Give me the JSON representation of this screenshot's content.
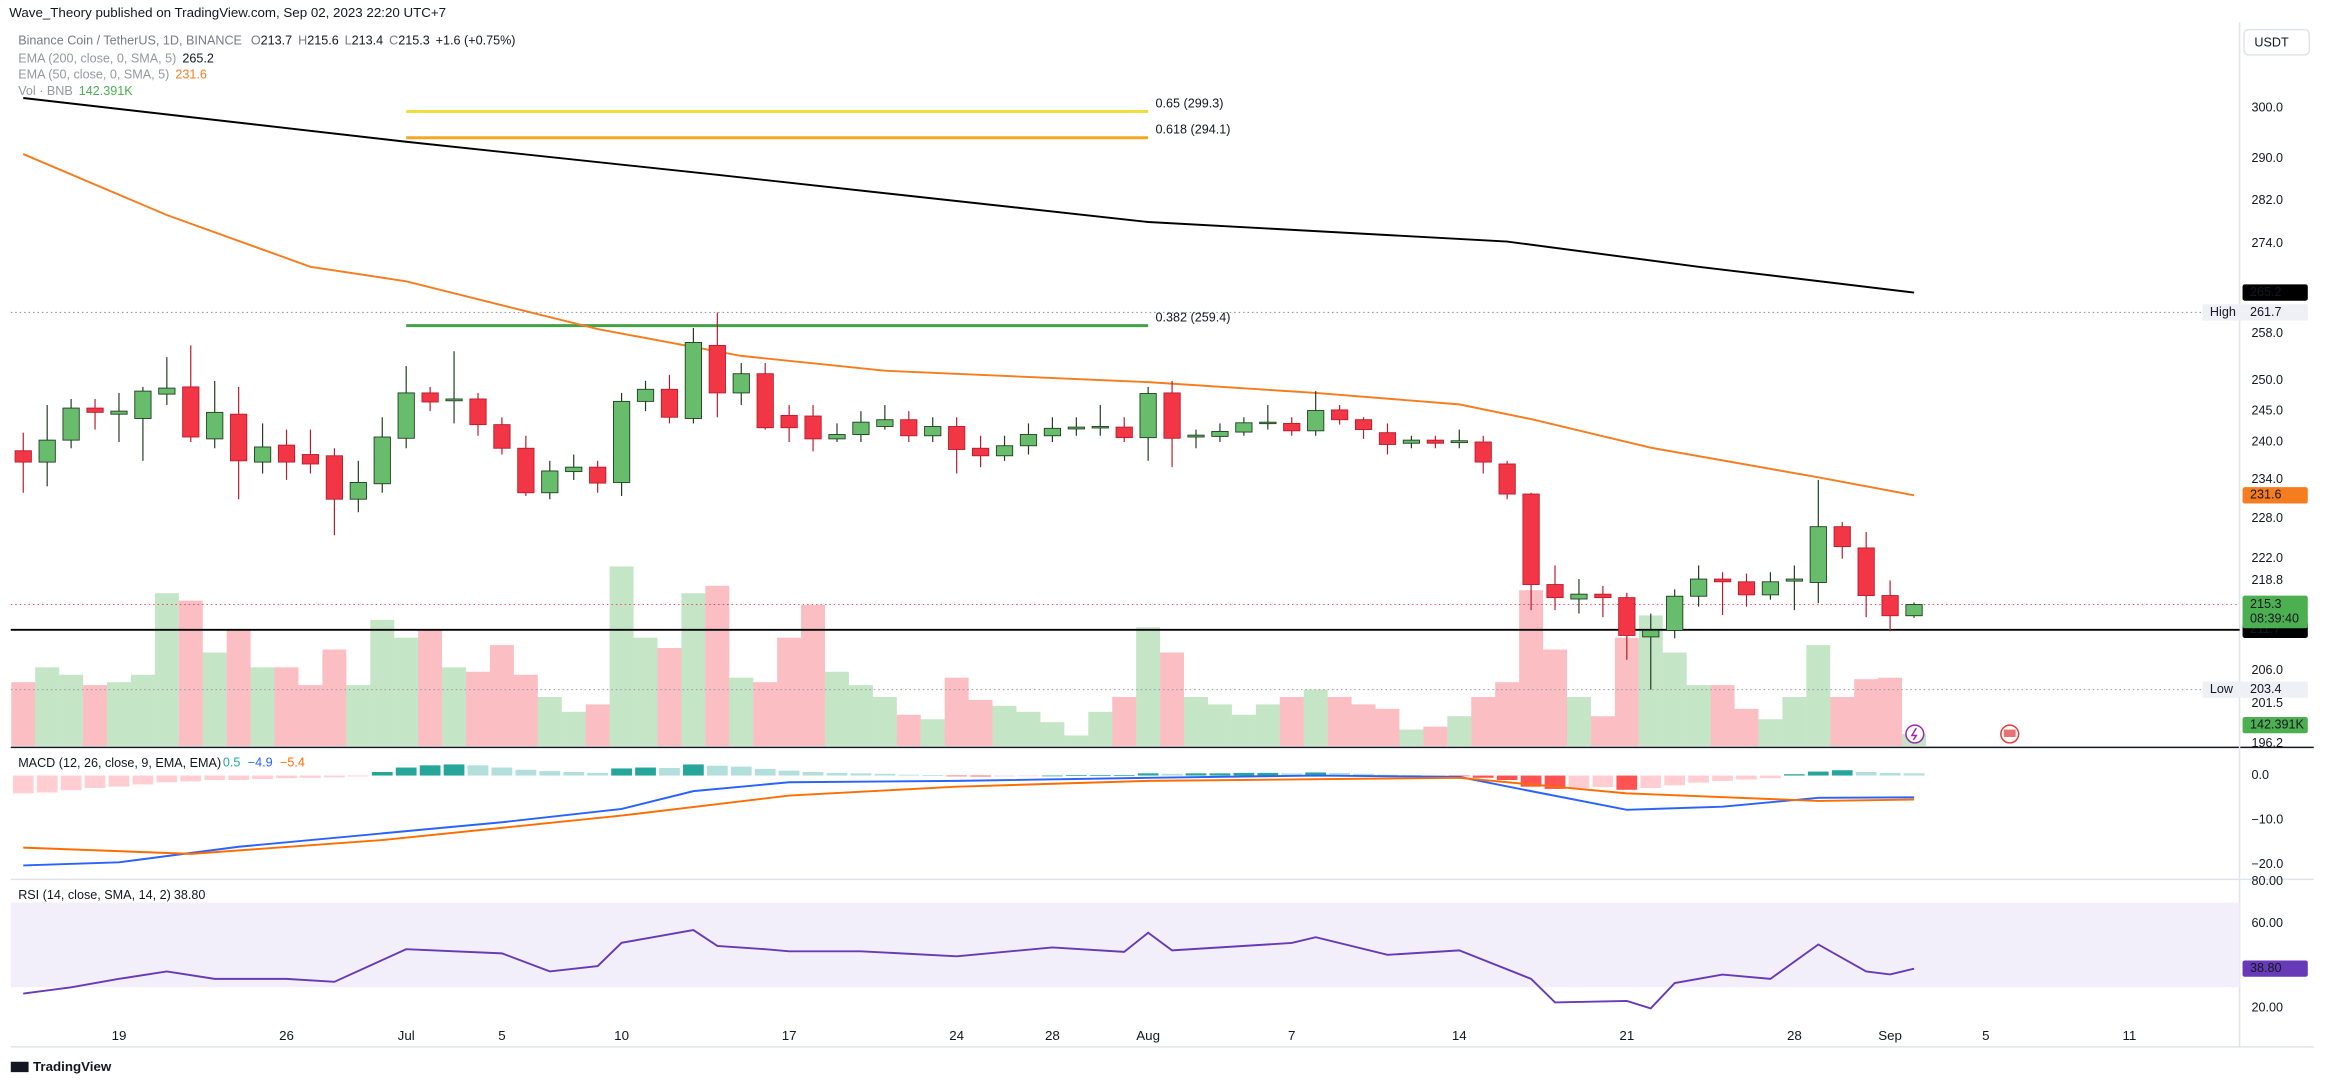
{
  "header": {
    "published": "Wave_Theory published on TradingView.com, Sep 02, 2023 22:20 UTC+7",
    "logo": "TradingView",
    "currency": "USDT"
  },
  "chart_data": {
    "type": "candlestick",
    "title": "Binance Coin / TetherUS, 1D, BINANCE",
    "ohlc_prefixes": [
      "O",
      "H",
      "L",
      "C"
    ],
    "change": "+1.6 (+0.75%)",
    "up_color": "#67bd6b",
    "down_color": "#f23645",
    "log_scale": true,
    "grid": false,
    "x": [
      "Jun 15",
      "Jun 16",
      "Jun 17",
      "Jun 18",
      "Jun 19",
      "Jun 20",
      "Jun 21",
      "Jun 22",
      "Jun 23",
      "Jun 24",
      "Jun 25",
      "Jun 26",
      "Jun 27",
      "Jun 28",
      "Jun 29",
      "Jun 30",
      "Jul 1",
      "Jul 2",
      "Jul 3",
      "Jul 4",
      "Jul 5",
      "Jul 6",
      "Jul 7",
      "Jul 8",
      "Jul 9",
      "Jul 10",
      "Jul 11",
      "Jul 12",
      "Jul 13",
      "Jul 14",
      "Jul 15",
      "Jul 16",
      "Jul 17",
      "Jul 18",
      "Jul 19",
      "Jul 20",
      "Jul 21",
      "Jul 22",
      "Jul 23",
      "Jul 24",
      "Jul 25",
      "Jul 26",
      "Jul 27",
      "Jul 28",
      "Jul 29",
      "Jul 30",
      "Jul 31",
      "Aug 1",
      "Aug 2",
      "Aug 3",
      "Aug 4",
      "Aug 5",
      "Aug 6",
      "Aug 7",
      "Aug 8",
      "Aug 9",
      "Aug 10",
      "Aug 11",
      "Aug 12",
      "Aug 13",
      "Aug 14",
      "Aug 15",
      "Aug 16",
      "Aug 17",
      "Aug 18",
      "Aug 19",
      "Aug 20",
      "Aug 21",
      "Aug 22",
      "Aug 23",
      "Aug 24",
      "Aug 25",
      "Aug 26",
      "Aug 27",
      "Aug 28",
      "Aug 29",
      "Aug 30",
      "Aug 31",
      "Sep 1",
      "Sep 2"
    ],
    "open": [
      238.6,
      236.8,
      240.3,
      245.5,
      244.5,
      243.8,
      247.8,
      249,
      240.5,
      244.5,
      236.8,
      239.5,
      238,
      237.8,
      231,
      233.4,
      240.6,
      248,
      246.7,
      247,
      242.8,
      239,
      232,
      235.3,
      236,
      233.6,
      246.6,
      248.6,
      243.8,
      256,
      248,
      251.2,
      244.3,
      244.2,
      240.5,
      241.2,
      242.5,
      243.6,
      241,
      242.5,
      239,
      237.8,
      239.4,
      241,
      242.1,
      242.3,
      242.4,
      240.7,
      248,
      240.8,
      240.9,
      241.6,
      243,
      243,
      241.8,
      245.2,
      243.6,
      241.5,
      239.8,
      240.3,
      239.9,
      240,
      236.5,
      231.8,
      218.2,
      216.1,
      216.8,
      216.3,
      210.7,
      211.6,
      216.5,
      219,
      218.6,
      216.7,
      218.7,
      218.5,
      226.8,
      223.6,
      216.6,
      213.7
    ],
    "high": [
      241.5,
      246,
      247,
      247,
      248,
      249,
      254,
      256,
      250,
      249,
      243,
      242,
      242,
      239,
      237,
      244,
      252.5,
      249,
      255,
      248,
      244,
      241,
      237,
      238,
      237,
      248,
      250,
      251,
      259,
      261.7,
      253,
      253,
      246,
      246,
      243,
      245,
      246,
      245,
      244,
      244,
      241,
      241,
      243,
      244,
      244,
      246,
      244,
      249,
      250,
      242,
      243,
      244,
      246,
      244,
      248.3,
      246,
      244,
      243,
      241,
      241,
      242,
      241,
      237,
      232,
      221,
      219,
      218,
      217,
      214,
      217.5,
      221,
      220,
      219.8,
      220,
      221,
      234,
      227.5,
      226,
      218.8,
      215.6
    ],
    "low": [
      232,
      233,
      239,
      242,
      240,
      237,
      246,
      240,
      239,
      231,
      235,
      234,
      235,
      225.5,
      229,
      232,
      239,
      245,
      243,
      241,
      238,
      231.5,
      231,
      234,
      232,
      231.5,
      245,
      243,
      243,
      244,
      246,
      242,
      240,
      238.5,
      240,
      240,
      242,
      240,
      240,
      235,
      236,
      237,
      238,
      240,
      241,
      241,
      240,
      237,
      236,
      239,
      240,
      241,
      242,
      241,
      241,
      242.8,
      240.5,
      238,
      239,
      239,
      239,
      235,
      231,
      214.5,
      214.5,
      214,
      213.5,
      207.5,
      203.4,
      210.5,
      215,
      213.8,
      215,
      216,
      214.5,
      215.5,
      222,
      213.5,
      211.5,
      213.4
    ],
    "close": [
      236.8,
      240.3,
      245.5,
      244.8,
      245,
      248.3,
      248.8,
      240.8,
      244.8,
      237,
      239.2,
      236.8,
      236.5,
      231,
      233.6,
      240.8,
      248,
      246.5,
      247,
      242.8,
      239,
      232,
      235.4,
      236,
      233.5,
      246.6,
      248.6,
      244,
      256.5,
      248,
      251.2,
      242.3,
      242.3,
      240.5,
      241.2,
      243.2,
      243.6,
      241,
      242.5,
      238.8,
      237.8,
      239.4,
      241.2,
      242.2,
      242.4,
      242.5,
      240.7,
      247.9,
      240.6,
      241.1,
      241.7,
      243.1,
      243.2,
      241.8,
      245.1,
      243.6,
      242,
      239.6,
      240.3,
      239.8,
      240.2,
      236.8,
      231.8,
      218.2,
      216.3,
      216.8,
      216.3,
      210.9,
      211.6,
      216.5,
      219,
      218.6,
      216.7,
      218.6,
      219,
      226.8,
      223.8,
      216.6,
      213.7,
      215.3
    ],
    "ylim": [
      195.9,
      319.9
    ],
    "yticks": [
      {
        "value": 300,
        "label": "300.0"
      },
      {
        "value": 290,
        "label": "290.0"
      },
      {
        "value": 282,
        "label": "282.0"
      },
      {
        "value": 274,
        "label": "274.0"
      },
      {
        "value": 258,
        "label": "258.0"
      },
      {
        "value": 250,
        "label": "250.0"
      },
      {
        "value": 245,
        "label": "245.0"
      },
      {
        "value": 240,
        "label": "240.0"
      },
      {
        "value": 234,
        "label": "234.0"
      },
      {
        "value": 228,
        "label": "228.0"
      },
      {
        "value": 222,
        "label": "222.0"
      },
      {
        "value": 218.8,
        "label": "218.8"
      },
      {
        "value": 206,
        "label": "206.0"
      },
      {
        "value": 201.5,
        "label": "201.5"
      },
      {
        "value": 196.2,
        "label": "196.2"
      }
    ],
    "xticks": [
      {
        "value": "Jun 19",
        "label": "19"
      },
      {
        "value": "Jun 26",
        "label": "26"
      },
      {
        "value": "Jul 1",
        "label": "Jul"
      },
      {
        "value": "Jul 5",
        "label": "5"
      },
      {
        "value": "Jul 10",
        "label": "10"
      },
      {
        "value": "Jul 17",
        "label": "17"
      },
      {
        "value": "Jul 24",
        "label": "24"
      },
      {
        "value": "Jul 28",
        "label": "28"
      },
      {
        "value": "Aug 1",
        "label": "Aug"
      },
      {
        "value": "Aug 7",
        "label": "7"
      },
      {
        "value": "Aug 14",
        "label": "14"
      },
      {
        "value": "Aug 21",
        "label": "21"
      },
      {
        "value": "Aug 28",
        "label": "28"
      },
      {
        "value": "Sep 1",
        "label": "Sep"
      },
      {
        "value": "Sep 5",
        "label": "5"
      },
      {
        "value": "Sep 11",
        "label": "11"
      }
    ],
    "ema": [
      {
        "name": "EMA (200, close, 0, SMA, 5)",
        "color": "#000000",
        "value_color": "#131722",
        "x": [
          "Jun 15",
          "Jul 1",
          "Jul 14",
          "Aug 1",
          "Aug 16",
          "Aug 24",
          "Sep 2"
        ],
        "values": [
          302.0,
          293.3,
          286.9,
          278.0,
          274.4,
          269.8,
          265.2
        ]
      },
      {
        "name": "EMA (50, close, 0, SMA, 5)",
        "color": "#f57c1f",
        "value_color": "#f57c1f",
        "x": [
          "Jun 15",
          "Jun 21",
          "Jun 27",
          "Jul 1",
          "Jul 9",
          "Jul 15",
          "Jul 21",
          "Aug 1",
          "Aug 8",
          "Aug 14",
          "Aug 17",
          "Aug 22",
          "Aug 29",
          "Sep 2"
        ],
        "values": [
          290.9,
          279.3,
          269.8,
          267.2,
          258.8,
          254.2,
          251.7,
          249.8,
          248.0,
          246.1,
          243.7,
          239.1,
          234.4,
          231.6
        ]
      }
    ],
    "volume": {
      "name": "Vol · BNB",
      "up_color": "rgba(76,175,80,0.32)",
      "down_color": "rgba(242,54,69,0.32)",
      "tag_color": "#4caf50",
      "values": [
        765,
        943,
        854,
        730,
        765,
        854,
        1833,
        1744,
        1121,
        1388,
        943,
        943,
        730,
        1157,
        730,
        1513,
        1299,
        1388,
        943,
        890,
        1210,
        854,
        587,
        409,
        498,
        2154,
        1299,
        1175,
        1833,
        1922,
        819,
        765,
        1299,
        1691,
        890,
        730,
        587,
        374,
        320,
        819,
        552,
        481,
        409,
        285,
        125,
        409,
        587,
        1424,
        1121,
        587,
        498,
        374,
        498,
        587,
        676,
        587,
        498,
        445,
        196,
        231,
        356,
        587,
        765,
        1869,
        1157,
        587,
        356,
        1299,
        1566,
        1121,
        730,
        730,
        445,
        320,
        587,
        1210,
        587,
        801,
        819,
        142.391
      ],
      "value_label": "142.391K"
    },
    "fib_x": [
      "Jul 1",
      "Aug 1"
    ],
    "fib_levels": [
      {
        "label": "0.65 (299.3)",
        "value": 299.3,
        "color": "#f2dc3c"
      },
      {
        "label": "0.618 (294.1)",
        "value": 294.1,
        "color": "#f5a623"
      },
      {
        "label": "0.382 (259.4)",
        "value": 259.4,
        "color": "#43a047"
      }
    ],
    "level": {
      "value": 211.7,
      "color": "#000000"
    },
    "high_low": [
      {
        "label": "High",
        "value": 261.7
      },
      {
        "label": "Low",
        "value": 203.4
      }
    ],
    "countdown": "08:39:40",
    "macd": {
      "name": "MACD (12, 26, close, 9, EMA, EMA)",
      "ylim": [
        -23,
        6
      ],
      "yticks": [
        {
          "value": 0,
          "label": "0.0"
        },
        {
          "value": -10,
          "label": "−10.0"
        },
        {
          "value": -20,
          "label": "−20.0"
        }
      ],
      "hist_colors": [
        "#26a69a",
        "#b2dfdb",
        "#ffcdd2",
        "#ff5252"
      ],
      "histogram": [
        -4,
        -3.8,
        -3.3,
        -2.8,
        -2.5,
        -2,
        -1.5,
        -1.3,
        -1,
        -1,
        -0.8,
        -0.6,
        -0.5,
        -0.4,
        -0.2,
        0.8,
        1.8,
        2.3,
        2.5,
        2.3,
        1.8,
        1.3,
        1.0,
        0.8,
        0.6,
        1.6,
        1.8,
        1.7,
        2.5,
        2.2,
        2.0,
        1.5,
        1.1,
        0.8,
        0.6,
        0.5,
        0.4,
        0.2,
        0.1,
        -0.1,
        -0.2,
        -0.2,
        -0.1,
        0,
        0.1,
        0.1,
        0.1,
        0.5,
        0.4,
        0.5,
        0.5,
        0.6,
        0.6,
        0.5,
        0.7,
        0.6,
        0.4,
        0.2,
        0.1,
        0,
        -0.1,
        -0.5,
        -1,
        -2.5,
        -3,
        -2.8,
        -2.6,
        -3.2,
        -2.8,
        -2.2,
        -1.6,
        -1.2,
        -0.9,
        -0.6,
        0.3,
        0.9,
        1.2,
        0.8,
        0.6,
        0.5
      ],
      "lines": [
        {
          "color": "#2962ff",
          "x": [
            "Jun 15",
            "Jun 19",
            "Jun 24",
            "Jun 30",
            "Jul 5",
            "Jul 10",
            "Jul 13",
            "Jul 17",
            "Jul 24",
            "Aug 1",
            "Aug 8",
            "Aug 14",
            "Aug 17",
            "Aug 21",
            "Aug 25",
            "Aug 29",
            "Sep 2"
          ],
          "values": [
            -20.2,
            -19.5,
            -16,
            -13,
            -10.5,
            -7.5,
            -3.5,
            -1.5,
            -1.2,
            -0.5,
            0,
            -0.3,
            -3.5,
            -7.7,
            -7,
            -5,
            -4.9
          ],
          "value_label": "−4.9"
        },
        {
          "color": "#ff6d00",
          "x": [
            "Jun 15",
            "Jun 22",
            "Jun 30",
            "Jul 10",
            "Jul 17",
            "Jul 24",
            "Aug 1",
            "Aug 14",
            "Aug 21",
            "Aug 29",
            "Sep 2"
          ],
          "values": [
            -16.2,
            -17.6,
            -14.5,
            -9,
            -4.5,
            -2.5,
            -1.2,
            -0.5,
            -4,
            -5.7,
            -5.4
          ],
          "value_label": "−5.4"
        }
      ]
    },
    "rsi": {
      "name": "RSI (14, close, SMA, 14, 2)",
      "color": "#673ab7",
      "ylim": [
        1.8,
        81
      ],
      "band": [
        30,
        70
      ],
      "yticks": [
        {
          "value": 80,
          "label": "80.00"
        },
        {
          "value": 60,
          "label": "60.00"
        },
        {
          "value": 20,
          "label": "20.00"
        }
      ],
      "x": [
        "Jun 15",
        "Jun 17",
        "Jun 19",
        "Jun 21",
        "Jun 23",
        "Jun 26",
        "Jun 28",
        "Jul 1",
        "Jul 5",
        "Jul 7",
        "Jul 9",
        "Jul 10",
        "Jul 11",
        "Jul 13",
        "Jul 14",
        "Jul 16",
        "Jul 17",
        "Jul 20",
        "Jul 24",
        "Jul 28",
        "Jul 31",
        "Aug 1",
        "Aug 2",
        "Aug 7",
        "Aug 8",
        "Aug 11",
        "Aug 14",
        "Aug 17",
        "Aug 18",
        "Aug 21",
        "Aug 22",
        "Aug 23",
        "Aug 25",
        "Aug 27",
        "Aug 29",
        "Aug 31",
        "Sep 1",
        "Sep 2"
      ],
      "values": [
        27,
        30,
        34,
        37.5,
        34,
        34,
        32.6,
        48,
        46,
        37.5,
        40,
        51,
        53,
        57,
        49.5,
        48,
        47,
        47,
        44.6,
        48.8,
        46.7,
        55.8,
        47.4,
        50.9,
        53.7,
        45.3,
        47.4,
        34,
        22.8,
        23.5,
        20,
        32,
        36,
        34,
        50.2,
        37.5,
        36.1,
        38.8
      ],
      "value_label": "38.80"
    }
  }
}
